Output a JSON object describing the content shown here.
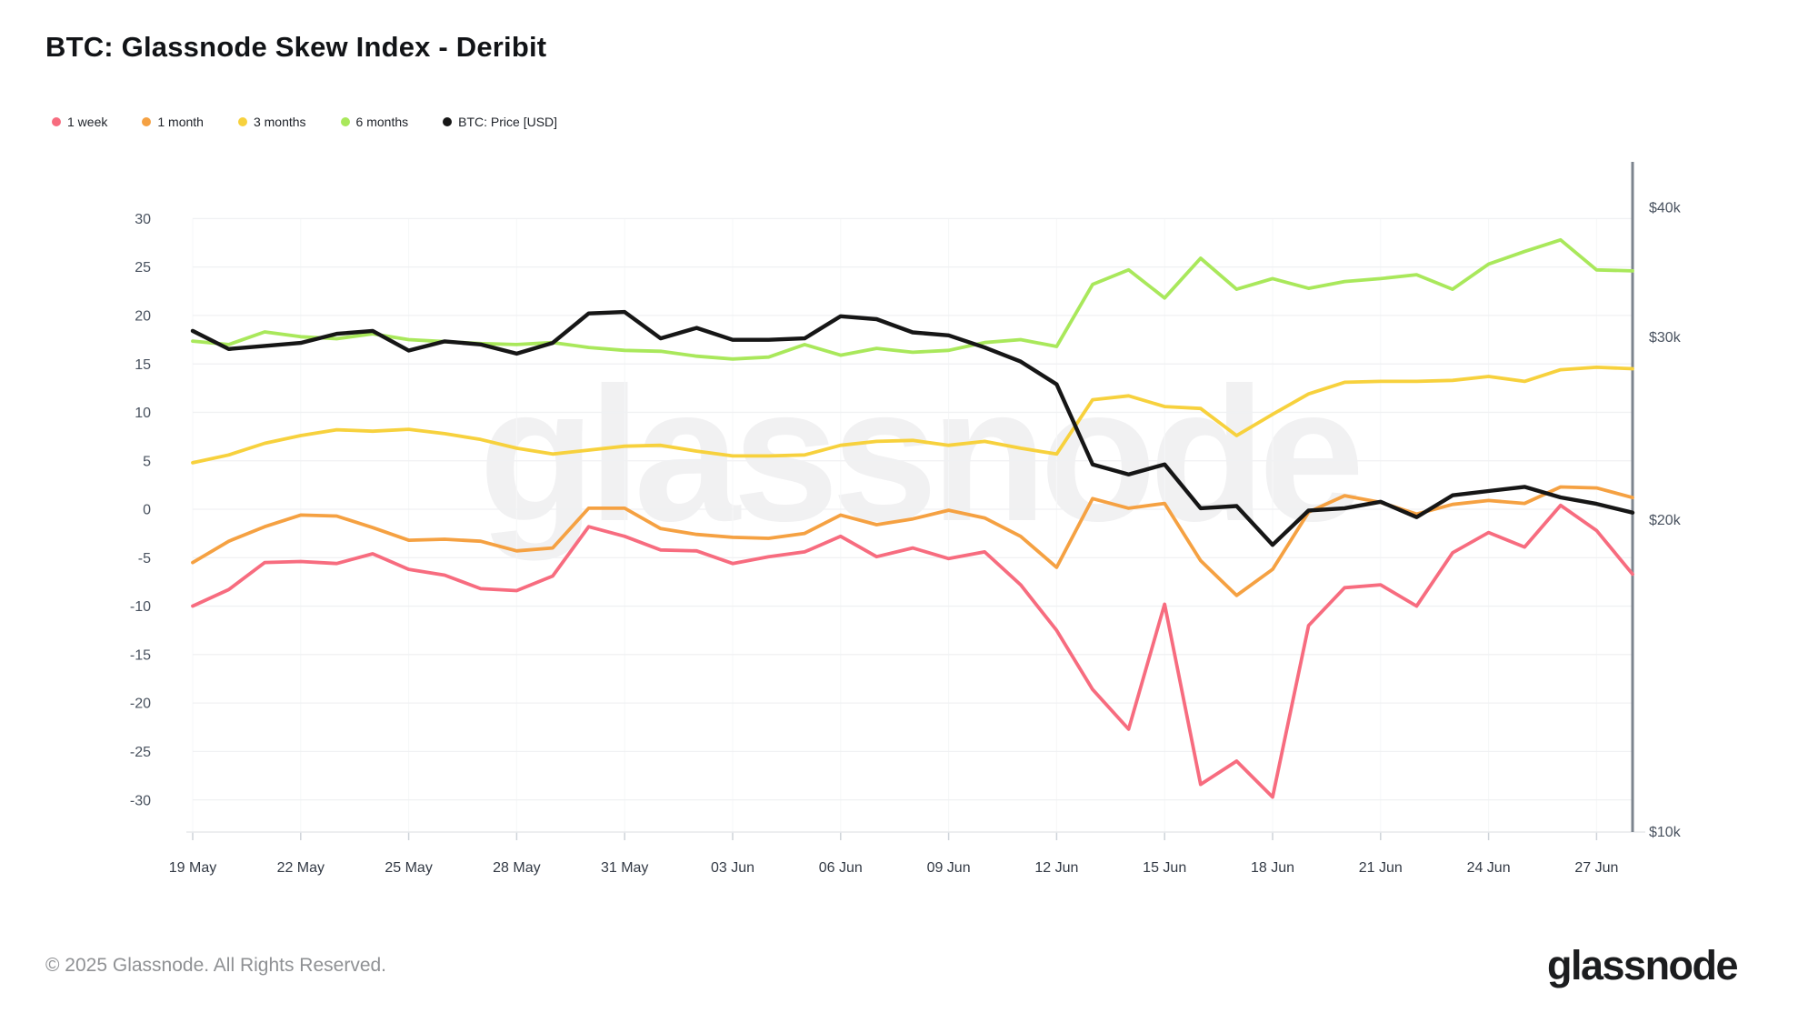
{
  "watermark": {
    "text": "glassnode"
  },
  "footer": {
    "copyright": "© 2025 Glassnode. All Rights Reserved.",
    "logo_text": "glassnode"
  },
  "chart_data": {
    "type": "line",
    "title": "BTC: Glassnode Skew Index - Deribit",
    "legend_position": "top-left",
    "grid": true,
    "x_tick_labels": [
      "19 May",
      "22 May",
      "25 May",
      "28 May",
      "31 May",
      "03 Jun",
      "06 Jun",
      "09 Jun",
      "12 Jun",
      "15 Jun",
      "18 Jun",
      "21 Jun",
      "24 Jun",
      "27 Jun"
    ],
    "x_tick_day_interval": 3,
    "dates": [
      "19 May",
      "20 May",
      "21 May",
      "22 May",
      "23 May",
      "24 May",
      "25 May",
      "26 May",
      "27 May",
      "28 May",
      "29 May",
      "30 May",
      "31 May",
      "01 Jun",
      "02 Jun",
      "03 Jun",
      "04 Jun",
      "05 Jun",
      "06 Jun",
      "07 Jun",
      "08 Jun",
      "09 Jun",
      "10 Jun",
      "11 Jun",
      "12 Jun",
      "13 Jun",
      "14 Jun",
      "15 Jun",
      "16 Jun",
      "17 Jun",
      "18 Jun",
      "19 Jun",
      "20 Jun",
      "21 Jun",
      "22 Jun",
      "23 Jun",
      "24 Jun",
      "25 Jun",
      "26 Jun",
      "27 Jun",
      "28 Jun"
    ],
    "left_axis": {
      "ticks": [
        30,
        25,
        20,
        15,
        10,
        5,
        0,
        -5,
        -10,
        -15,
        -20,
        -25,
        -30
      ],
      "range": [
        -30,
        30
      ]
    },
    "right_axis": {
      "scale": "log",
      "unit": "USD",
      "ticks": [
        {
          "label": "$40k",
          "value_k": 40
        },
        {
          "label": "$30k",
          "value_k": 30
        },
        {
          "label": "$20k",
          "value_k": 20
        },
        {
          "label": "$10k",
          "value_k": 10
        }
      ]
    },
    "series": [
      {
        "name": "1 week",
        "color": "#f76c7f",
        "axis": "left",
        "values": [
          -10.0,
          -8.3,
          -5.5,
          -5.4,
          -5.6,
          -4.6,
          -6.2,
          -6.8,
          -8.2,
          -8.4,
          -6.9,
          -1.8,
          -2.8,
          -4.2,
          -4.3,
          -5.6,
          -4.9,
          -4.4,
          -2.8,
          -4.9,
          -4.0,
          -5.1,
          -4.4,
          -7.8,
          -12.5,
          -18.6,
          -22.7,
          -9.8,
          -28.4,
          -26.0,
          -29.7,
          -12.0,
          -8.1,
          -7.8,
          -10.0,
          -4.5,
          -2.4,
          -3.9,
          0.4,
          -2.2,
          -6.7
        ]
      },
      {
        "name": "1 month",
        "color": "#f5a142",
        "axis": "left",
        "values": [
          -5.5,
          -3.3,
          -1.8,
          -0.6,
          -0.7,
          -1.9,
          -3.2,
          -3.1,
          -3.3,
          -4.3,
          -4.0,
          0.1,
          0.1,
          -2.0,
          -2.6,
          -2.9,
          -3.0,
          -2.5,
          -0.6,
          -1.6,
          -1.0,
          -0.1,
          -0.9,
          -2.8,
          -6.0,
          1.1,
          0.1,
          0.6,
          -5.3,
          -8.9,
          -6.2,
          -0.3,
          1.4,
          0.7,
          -0.5,
          0.5,
          0.9,
          0.6,
          2.3,
          2.2,
          1.2
        ]
      },
      {
        "name": "3 months",
        "color": "#f7d13d",
        "axis": "left",
        "values": [
          4.8,
          5.6,
          6.8,
          7.6,
          8.2,
          8.05,
          8.25,
          7.8,
          7.2,
          6.3,
          5.7,
          6.1,
          6.5,
          6.6,
          6.0,
          5.5,
          5.5,
          5.6,
          6.6,
          7.0,
          7.1,
          6.6,
          7.0,
          6.3,
          5.7,
          11.3,
          11.7,
          10.6,
          10.4,
          7.6,
          9.8,
          11.9,
          13.1,
          13.2,
          13.2,
          13.3,
          13.7,
          13.2,
          14.4,
          14.65,
          14.5
        ]
      },
      {
        "name": "6 months",
        "color": "#a9e85b",
        "axis": "left",
        "values": [
          17.35,
          17.0,
          18.3,
          17.8,
          17.6,
          18.1,
          17.5,
          17.3,
          17.1,
          17.0,
          17.2,
          16.7,
          16.4,
          16.3,
          15.8,
          15.5,
          15.7,
          17.0,
          15.9,
          16.6,
          16.2,
          16.4,
          17.2,
          17.5,
          16.8,
          23.2,
          24.7,
          21.8,
          25.9,
          22.7,
          23.8,
          22.8,
          23.5,
          23.8,
          24.2,
          22.7,
          25.3,
          26.6,
          27.8,
          24.7,
          24.6
        ]
      },
      {
        "name": "BTC: Price [USD]",
        "color": "#161616",
        "axis": "right",
        "unit": "USD thousands",
        "values": [
          30.4,
          29.2,
          29.4,
          29.6,
          30.2,
          30.4,
          29.1,
          29.7,
          29.5,
          28.9,
          29.6,
          31.6,
          31.7,
          29.9,
          30.6,
          29.8,
          29.8,
          29.9,
          31.4,
          31.2,
          30.3,
          30.1,
          29.3,
          28.4,
          27.0,
          22.6,
          22.1,
          22.6,
          20.5,
          20.6,
          18.9,
          20.4,
          20.5,
          20.8,
          20.1,
          21.1,
          21.3,
          21.5,
          21.0,
          20.7,
          20.3
        ]
      }
    ]
  }
}
